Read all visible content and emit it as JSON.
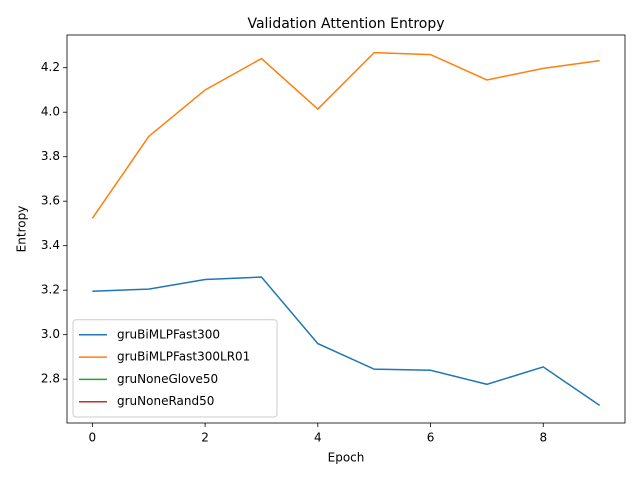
{
  "chart_data": {
    "type": "line",
    "title": "Validation Attention Entropy",
    "x_label": "Epoch",
    "y_label": "Entropy",
    "x": [
      0,
      1,
      2,
      3,
      4,
      5,
      6,
      7,
      8,
      9
    ],
    "series": [
      {
        "name": "gruBiMLPFast300",
        "color": "#1f77b4",
        "values": [
          3.195,
          3.205,
          3.248,
          3.259,
          2.96,
          2.845,
          2.84,
          2.777,
          2.855,
          2.682
        ]
      },
      {
        "name": "gruBiMLPFast300LR01",
        "color": "#ff7f0e",
        "values": [
          3.523,
          3.891,
          4.1,
          4.241,
          4.014,
          4.268,
          4.259,
          4.145,
          4.197,
          4.232
        ]
      },
      {
        "name": "gruNoneGlove50",
        "color": "#2ca02c",
        "values": [
          null,
          null,
          null,
          null,
          null,
          null,
          null,
          null,
          null,
          null
        ]
      },
      {
        "name": "gruNoneRand50",
        "color": "#d62728",
        "values": [
          null,
          null,
          null,
          null,
          null,
          null,
          null,
          null,
          null,
          null
        ]
      }
    ],
    "xlim": [
      -0.45,
      9.45
    ],
    "ylim": [
      2.603,
      4.347
    ],
    "xticks": [
      0,
      2,
      4,
      6,
      8
    ],
    "yticks": [
      2.8,
      {
        "value": 3,
        "label": "3.0"
      },
      3.2,
      3.4,
      3.6,
      3.8,
      {
        "value": 4,
        "label": "4.0"
      },
      4.2
    ],
    "legend": "lower left"
  }
}
